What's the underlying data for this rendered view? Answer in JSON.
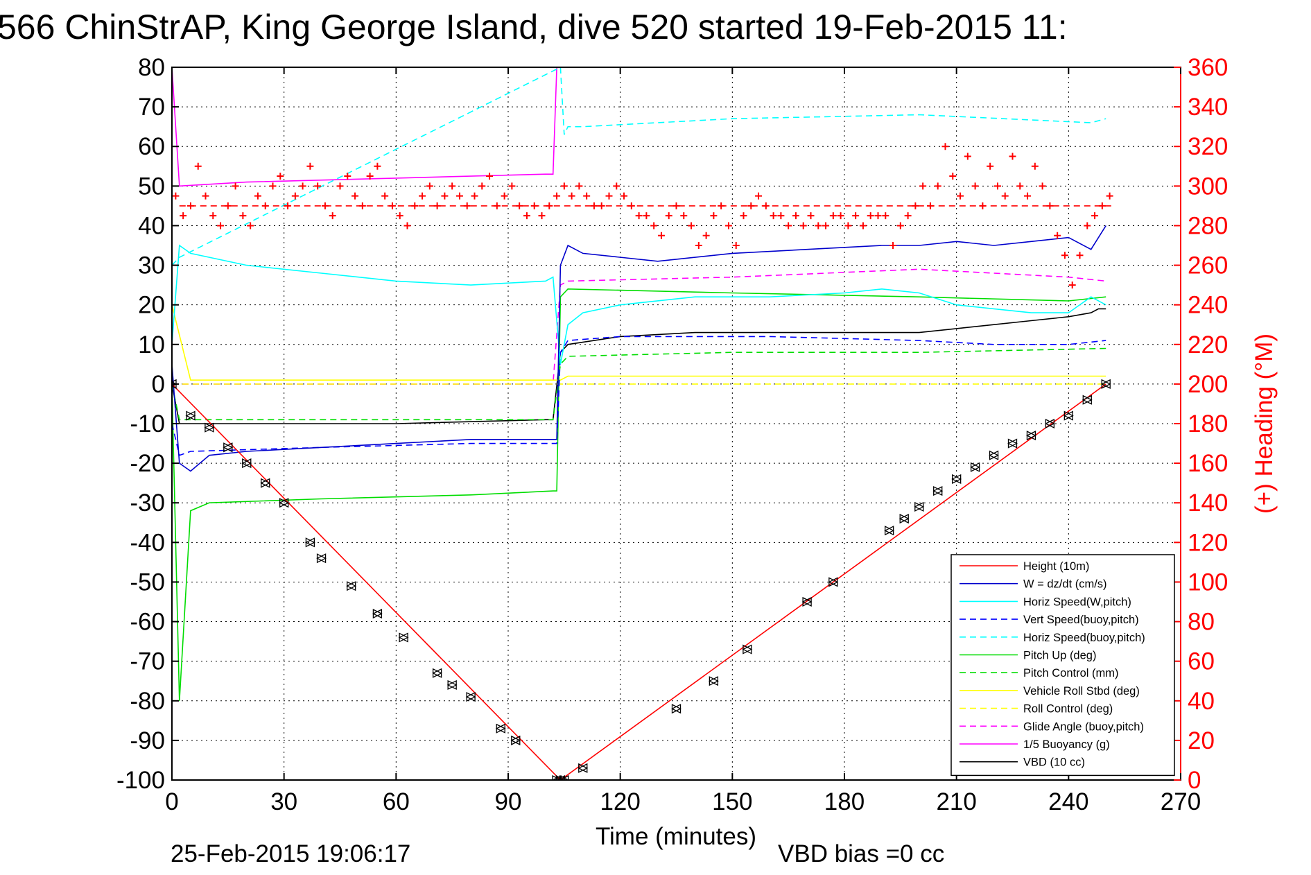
{
  "header": {
    "title": "566 ChinStrAP, King George Island, dive 520 started 19-Feb-2015 11:",
    "footer_timestamp": "25-Feb-2015 19:06:17",
    "footer_bias": "VBD bias =0 cc"
  },
  "chart_data": {
    "type": "line",
    "title": "566 ChinStrAP, King George Island, dive 520 started 19-Feb-2015 11:",
    "xlabel": "Time (minutes)",
    "ylabel": "",
    "y2label": "(+) Heading (°M)",
    "xlim": [
      0,
      270
    ],
    "ylim": [
      -100,
      80
    ],
    "y2lim": [
      0,
      360
    ],
    "xticks": [
      "0",
      "30",
      "60",
      "90",
      "120",
      "150",
      "180",
      "210",
      "240",
      "270"
    ],
    "yticks": [
      "80",
      "70",
      "60",
      "50",
      "40",
      "30",
      "20",
      "10",
      "0",
      "-10",
      "-20",
      "-30",
      "-40",
      "-50",
      "-60",
      "-70",
      "-80",
      "-90",
      "-100"
    ],
    "y2ticks": [
      "360",
      "340",
      "320",
      "300",
      "280",
      "260",
      "240",
      "220",
      "200",
      "180",
      "160",
      "140",
      "120",
      "100",
      "80",
      "60",
      "40",
      "20",
      "0"
    ],
    "grid": true,
    "legend_position": "bottom-right",
    "colors": {
      "red": "#ff0000",
      "blue": "#0000cc",
      "cyan": "#00ffff",
      "green": "#00dd00",
      "yellow": "#ffff00",
      "magenta": "#ff00ff",
      "black": "#000000"
    },
    "series": [
      {
        "name": "Height (10m)",
        "color": "#ff0000",
        "style": "solid",
        "x": [
          0,
          104,
          250
        ],
        "y": [
          0,
          -100,
          0
        ]
      },
      {
        "name": "W = dz/dt (cm/s)",
        "color": "#0000cc",
        "style": "solid",
        "x": [
          0,
          2,
          5,
          10,
          20,
          40,
          60,
          80,
          100,
          103,
          104,
          106,
          110,
          130,
          150,
          170,
          190,
          200,
          210,
          220,
          230,
          240,
          246,
          250
        ],
        "y": [
          5,
          -20,
          -22,
          -18,
          -17,
          -16,
          -15,
          -14,
          -14,
          -14,
          30,
          35,
          33,
          31,
          33,
          34,
          35,
          35,
          36,
          35,
          36,
          37,
          34,
          40
        ]
      },
      {
        "name": "Horiz Speed(W,pitch)",
        "color": "#00ffff",
        "style": "solid",
        "x": [
          0,
          2,
          5,
          20,
          40,
          60,
          80,
          100,
          102,
          104,
          106,
          110,
          120,
          140,
          160,
          180,
          190,
          200,
          210,
          220,
          230,
          240,
          246,
          250
        ],
        "y": [
          10,
          35,
          33,
          30,
          28,
          26,
          25,
          26,
          27,
          5,
          15,
          18,
          20,
          22,
          22,
          23,
          24,
          23,
          20,
          19,
          18,
          18,
          22,
          20
        ]
      },
      {
        "name": "Vert Speed(buoy,pitch)",
        "color": "#0000ff",
        "style": "dashed",
        "x": [
          0,
          2,
          5,
          40,
          80,
          103,
          104,
          106,
          120,
          160,
          200,
          220,
          240,
          250
        ],
        "y": [
          -10,
          -18,
          -17,
          -16,
          -15,
          -15,
          8,
          11,
          12,
          12,
          11,
          10,
          10,
          11
        ]
      },
      {
        "name": "Horiz Speed(buoy,pitch)",
        "color": "#00ffff",
        "style": "dashed",
        "x": [
          0,
          2,
          104,
          105,
          106,
          110,
          150,
          200,
          246,
          250
        ],
        "y": [
          30,
          32,
          80,
          63,
          65,
          65,
          67,
          68,
          66,
          67
        ]
      },
      {
        "name": "Pitch Up (deg)",
        "color": "#00dd00",
        "style": "solid",
        "x": [
          0,
          2,
          5,
          10,
          40,
          80,
          102,
          103,
          104,
          106,
          150,
          200,
          240,
          250
        ],
        "y": [
          0,
          -80,
          -32,
          -30,
          -29,
          -28,
          -27,
          -27,
          22,
          24,
          23,
          22,
          21,
          22
        ]
      },
      {
        "name": "Pitch Control (mm)",
        "color": "#00dd00",
        "style": "dashed",
        "x": [
          0,
          2,
          102,
          104,
          106,
          150,
          200,
          250
        ],
        "y": [
          0,
          -9,
          -9,
          5,
          7,
          8,
          8,
          9
        ]
      },
      {
        "name": "Vehicle Roll Stbd (deg)",
        "color": "#ffff00",
        "style": "solid",
        "x": [
          0,
          5,
          30,
          60,
          100,
          104,
          106,
          150,
          190,
          200,
          220,
          246,
          250
        ],
        "y": [
          20,
          1,
          1,
          1,
          1,
          1,
          2,
          2,
          2,
          2,
          2,
          2,
          2
        ]
      },
      {
        "name": "Roll Control (deg)",
        "color": "#ffff00",
        "style": "dashed",
        "x": [
          0,
          104,
          200,
          250
        ],
        "y": [
          0,
          0,
          0,
          0
        ]
      },
      {
        "name": "Glide Angle (buoy,pitch)",
        "color": "#ff00ff",
        "style": "dashed",
        "x": [
          0,
          102,
          104,
          106,
          150,
          200,
          240,
          250
        ],
        "y": [
          0,
          0,
          25,
          26,
          27,
          29,
          27,
          26
        ]
      },
      {
        "name": "1/5 Buoyancy (g)",
        "color": "#ff00ff",
        "style": "solid",
        "x": [
          0,
          2,
          20,
          60,
          100,
          102,
          103
        ],
        "y": [
          80,
          50,
          51,
          52,
          53,
          53,
          80
        ]
      },
      {
        "name": "VBD (10 cc)",
        "color": "#000000",
        "style": "solid",
        "x": [
          0,
          2,
          20,
          60,
          100,
          102,
          104,
          106,
          120,
          140,
          160,
          180,
          200,
          210,
          220,
          230,
          240,
          246,
          248,
          250
        ],
        "y": [
          0,
          -10,
          -10,
          -10,
          -9,
          -9,
          8,
          10,
          12,
          13,
          13,
          13,
          13,
          14,
          15,
          16,
          17,
          18,
          19,
          19
        ]
      }
    ],
    "heading_series": {
      "name": "(+) Heading (°M)",
      "color": "#ff0000",
      "mean": 290,
      "x": [
        1,
        3,
        5,
        7,
        9,
        11,
        13,
        15,
        17,
        19,
        21,
        23,
        25,
        27,
        29,
        31,
        33,
        35,
        37,
        39,
        41,
        43,
        45,
        47,
        49,
        51,
        53,
        55,
        57,
        59,
        61,
        63,
        65,
        67,
        69,
        71,
        73,
        75,
        77,
        79,
        81,
        83,
        85,
        87,
        89,
        91,
        93,
        95,
        97,
        99,
        101,
        103,
        105,
        107,
        109,
        111,
        113,
        115,
        117,
        119,
        121,
        123,
        125,
        127,
        129,
        131,
        133,
        135,
        137,
        139,
        141,
        143,
        145,
        147,
        149,
        151,
        153,
        155,
        157,
        159,
        161,
        163,
        165,
        167,
        169,
        171,
        173,
        175,
        177,
        179,
        181,
        183,
        185,
        187,
        189,
        191,
        193,
        195,
        197,
        199,
        201,
        203,
        205,
        207,
        209,
        211,
        213,
        215,
        217,
        219,
        221,
        223,
        225,
        227,
        229,
        231,
        233,
        235,
        237,
        239,
        241,
        243,
        245,
        247,
        249,
        251
      ],
      "y": [
        295,
        285,
        290,
        310,
        295,
        285,
        280,
        290,
        300,
        285,
        280,
        295,
        290,
        300,
        305,
        290,
        295,
        300,
        310,
        300,
        290,
        285,
        300,
        305,
        295,
        290,
        305,
        310,
        295,
        290,
        285,
        280,
        290,
        295,
        300,
        290,
        295,
        300,
        295,
        290,
        295,
        300,
        305,
        290,
        295,
        300,
        290,
        285,
        290,
        285,
        290,
        295,
        300,
        295,
        300,
        295,
        290,
        290,
        295,
        300,
        295,
        290,
        285,
        285,
        280,
        275,
        285,
        290,
        285,
        280,
        270,
        275,
        285,
        290,
        280,
        270,
        285,
        290,
        295,
        290,
        285,
        285,
        280,
        285,
        280,
        285,
        280,
        280,
        285,
        285,
        280,
        285,
        280,
        285,
        285,
        285,
        270,
        280,
        285,
        290,
        300,
        290,
        300,
        320,
        305,
        295,
        315,
        300,
        290,
        310,
        300,
        295,
        315,
        300,
        295,
        310,
        300,
        290,
        275,
        265,
        250,
        265,
        280,
        285,
        290,
        295
      ]
    },
    "depth_markers": {
      "x": [
        0,
        5,
        10,
        15,
        20,
        25,
        30,
        37,
        40,
        48,
        55,
        62,
        71,
        75,
        80,
        88,
        92,
        103,
        104,
        105,
        110,
        135,
        145,
        154,
        170,
        177,
        192,
        196,
        200,
        205,
        210,
        215,
        220,
        225,
        230,
        235,
        240,
        245,
        250
      ],
      "y": [
        0,
        -8,
        -11,
        -16,
        -20,
        -25,
        -30,
        -40,
        -44,
        -51,
        -58,
        -64,
        -73,
        -76,
        -79,
        -87,
        -90,
        -100,
        -100,
        -100,
        -97,
        -82,
        -75,
        -67,
        -55,
        -50,
        -37,
        -34,
        -31,
        -27,
        -24,
        -21,
        -18,
        -15,
        -13,
        -10,
        -8,
        -4,
        0
      ]
    }
  }
}
